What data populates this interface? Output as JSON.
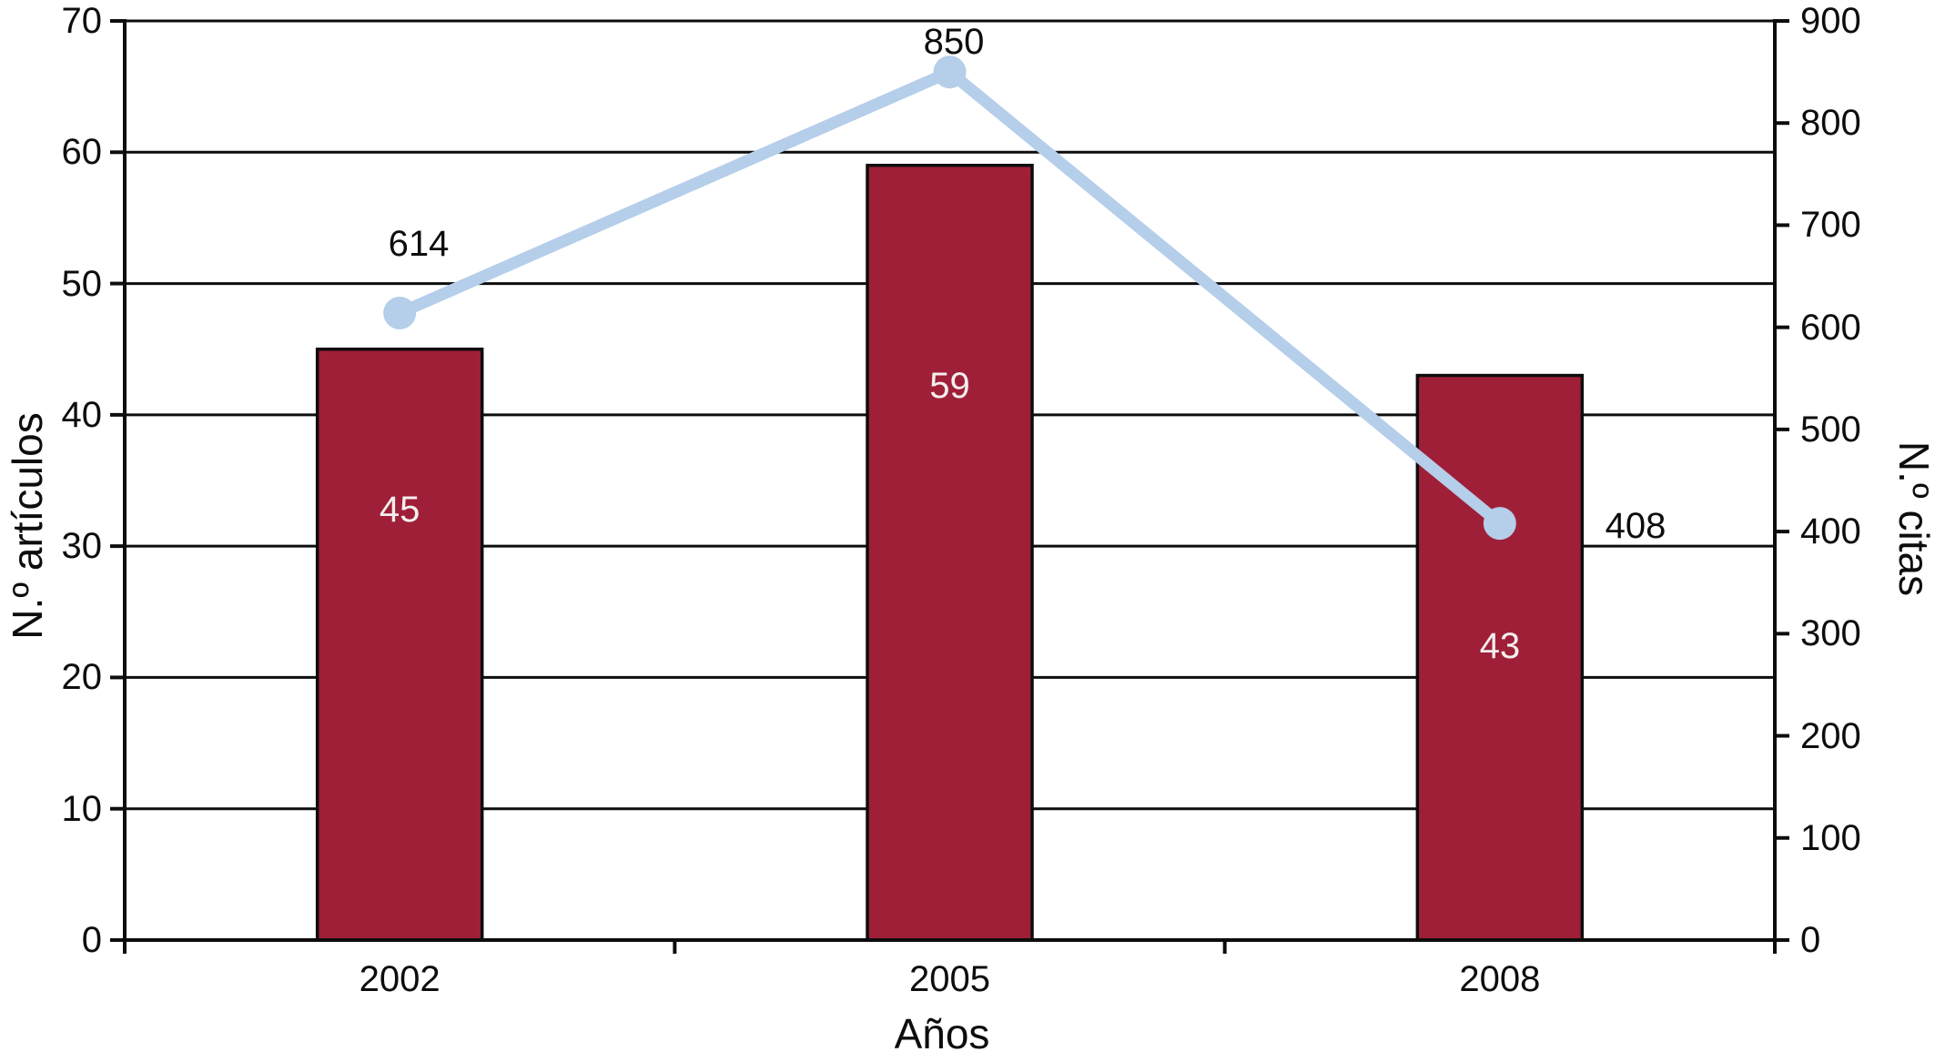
{
  "chart_data": {
    "type": "combo",
    "title": "",
    "categories": [
      "2002",
      "2005",
      "2008"
    ],
    "series": [
      {
        "name": "N.º artículos",
        "type": "bar",
        "axis": "left",
        "values": [
          45,
          59,
          43
        ],
        "labels": [
          "45",
          "59",
          "43"
        ]
      },
      {
        "name": "N.º citas",
        "type": "line",
        "axis": "right",
        "values": [
          614,
          850,
          408
        ],
        "labels": [
          "614",
          "850",
          "408"
        ]
      }
    ],
    "x_axis": {
      "title": "Años",
      "tick_labels": [
        "2002",
        "2005",
        "2008"
      ]
    },
    "left_axis": {
      "title": "N.º artículos",
      "min": 0,
      "max": 70,
      "step": 10,
      "tick_labels": [
        "0",
        "10",
        "20",
        "30",
        "40",
        "50",
        "60",
        "70"
      ]
    },
    "right_axis": {
      "title": "N.º citas",
      "min": 0,
      "max": 900,
      "step": 100,
      "tick_labels": [
        "0",
        "100",
        "200",
        "300",
        "400",
        "500",
        "600",
        "700",
        "800",
        "900"
      ]
    },
    "grid": "horizontal-left-steps",
    "legend": "none",
    "colors": {
      "bar_fill": "#A01F38",
      "bar_border": "#0d0d0d",
      "line": "#B5CEEA",
      "marker": "#B5CEEA",
      "axis": "#0d0d0d",
      "grid": "#0d0d0d",
      "text": "#0d0d0d",
      "bar_label_text": "#f3efef",
      "background": "#ffffff"
    }
  }
}
